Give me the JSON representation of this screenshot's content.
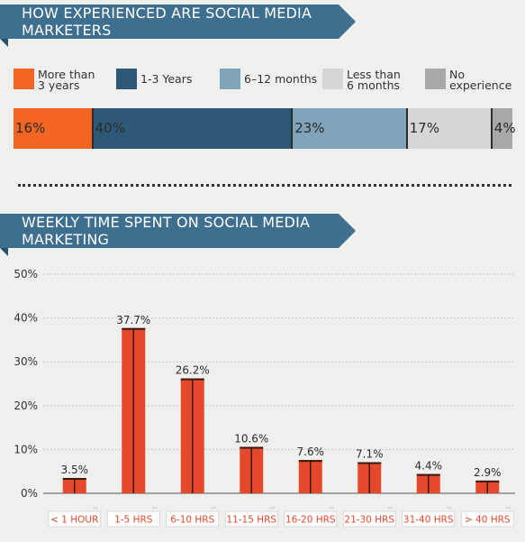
{
  "section1": {
    "title": "HOW EXPERIENCED ARE SOCIAL MEDIA MARKETERS",
    "legend": [
      {
        "label": "More than 3 years",
        "color": "#f26522"
      },
      {
        "label": "1-3 Years",
        "color": "#2e5878"
      },
      {
        "label": "6–12 months",
        "color": "#7fa3b9"
      },
      {
        "label": "Less than 6 months",
        "color": "#d6d6d6"
      },
      {
        "label": "No experience",
        "color": "#a8a8a8"
      }
    ],
    "segments": [
      {
        "label": "16%",
        "value": 16,
        "color": "#f26522"
      },
      {
        "label": "40%",
        "value": 40,
        "color": "#2e5878"
      },
      {
        "label": "23%",
        "value": 23,
        "color": "#7fa3b9"
      },
      {
        "label": "17%",
        "value": 17,
        "color": "#d6d6d6"
      },
      {
        "label": "4%",
        "value": 4,
        "color": "#a8a8a8"
      }
    ]
  },
  "section2": {
    "title": "WEEKLY TIME SPENT ON SOCIAL MEDIA MARKETING"
  },
  "chart_data": {
    "type": "bar",
    "categories": [
      "< 1 HOUR",
      "1-5 HRS",
      "6-10 HRS",
      "11-15 HRS",
      "16-20 HRS",
      "21-30 HRS",
      "31-40 HRS",
      "> 40 HRS"
    ],
    "values": [
      3.5,
      37.7,
      26.2,
      10.6,
      7.6,
      7.1,
      4.4,
      2.9
    ],
    "value_labels": [
      "3.5%",
      "37.7%",
      "26.2%",
      "10.6%",
      "7.6%",
      "7.1%",
      "4.4%",
      "2.9%"
    ],
    "yticks": [
      "0%",
      "10%",
      "20%",
      "30%",
      "40%",
      "50%"
    ],
    "ylim": [
      0,
      50
    ],
    "bar_color": "#e5482a",
    "grid": true
  }
}
